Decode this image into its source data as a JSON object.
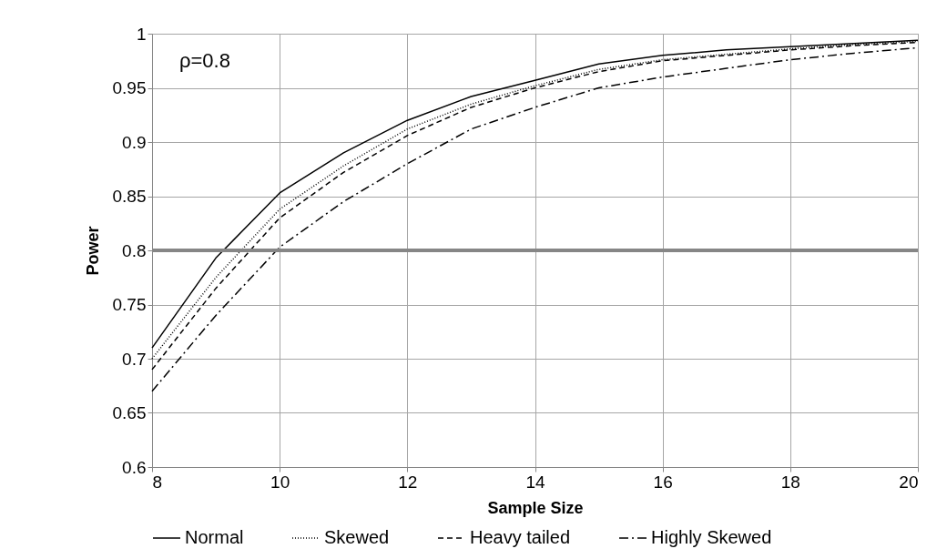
{
  "chart_data": {
    "type": "line",
    "xlabel": "Sample Size",
    "ylabel": "Power",
    "x": [
      8,
      9,
      10,
      11,
      12,
      13,
      14,
      15,
      16,
      17,
      18,
      19,
      20
    ],
    "series": [
      {
        "name": "Normal",
        "color": "#000000",
        "line_style": "solid",
        "values": [
          0.71,
          0.793,
          0.853,
          0.89,
          0.92,
          0.942,
          0.957,
          0.972,
          0.98,
          0.985,
          0.988,
          0.991,
          0.994
        ]
      },
      {
        "name": "Skewed",
        "color": "#000000",
        "line_style": "dotted",
        "values": [
          0.7,
          0.775,
          0.838,
          0.878,
          0.912,
          0.935,
          0.952,
          0.967,
          0.976,
          0.981,
          0.986,
          0.99,
          0.993
        ]
      },
      {
        "name": "Heavy tailed",
        "color": "#000000",
        "line_style": "dashed",
        "values": [
          0.69,
          0.765,
          0.83,
          0.872,
          0.906,
          0.932,
          0.95,
          0.965,
          0.975,
          0.98,
          0.985,
          0.989,
          0.992
        ]
      },
      {
        "name": "Highly Skewed",
        "color": "#000000",
        "line_style": "dashdot",
        "values": [
          0.67,
          0.74,
          0.803,
          0.845,
          0.88,
          0.912,
          0.932,
          0.95,
          0.96,
          0.968,
          0.976,
          0.982,
          0.987
        ]
      }
    ],
    "xlim": [
      8,
      20
    ],
    "xticks": [
      8,
      10,
      12,
      14,
      16,
      18,
      20
    ],
    "ylim": [
      0.6,
      1
    ],
    "yticks": [
      0.6,
      0.65,
      0.7,
      0.75,
      0.8,
      0.85,
      0.9,
      0.95,
      1
    ],
    "ref_lines": [
      {
        "axis": "y",
        "value": 0.8,
        "color": "#868686"
      }
    ],
    "annotations": [
      "ρ=0.8"
    ],
    "grid": true,
    "legend": "bottom"
  }
}
